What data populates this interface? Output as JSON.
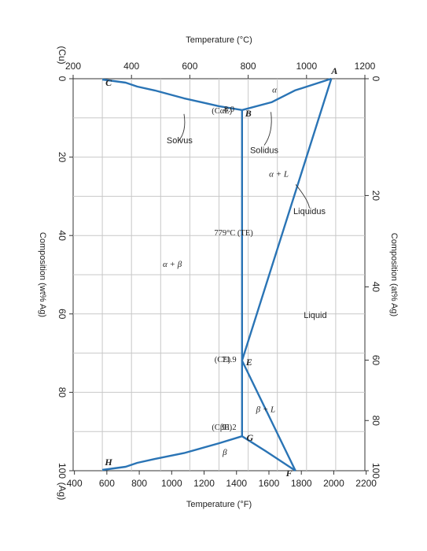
{
  "chart_data": {
    "type": "line",
    "title": "",
    "orientation": "rotated 90 degrees clockwise",
    "x_bottom": {
      "label": "Composition (wt% Ag)",
      "range": [
        0,
        100
      ],
      "ticks": [
        "0",
        "20",
        "40",
        "60",
        "80",
        "100"
      ],
      "end_labels": [
        "(Cu)",
        "(Ag)"
      ]
    },
    "x_top": {
      "label": "Composition (at% Ag)",
      "ticks": [
        "0",
        "20",
        "40",
        "60",
        "80",
        "100"
      ],
      "tick_wt": [
        0,
        29.8,
        53.1,
        71.8,
        87.2,
        100
      ]
    },
    "y_left": {
      "label": "Temperature (°C)",
      "range": [
        200,
        1200
      ],
      "ticks": [
        "200",
        "400",
        "600",
        "800",
        "1000",
        "1200"
      ]
    },
    "y_right": {
      "label": "Temperature (°F)",
      "ticks": [
        "400",
        "600",
        "800",
        "1000",
        "1200",
        "1400",
        "1600",
        "1800",
        "2000",
        "2200"
      ]
    },
    "grid": true,
    "lines": [
      {
        "name": "Liquidus",
        "points": [
          [
            0,
            1085
          ],
          [
            71.9,
            779
          ],
          [
            100,
            962
          ]
        ]
      },
      {
        "name": "Solidus",
        "points": [
          [
            0,
            1085
          ],
          [
            3,
            960
          ],
          [
            6,
            880
          ],
          [
            8.0,
            779
          ]
        ]
      },
      {
        "name": "Solidus",
        "points": [
          [
            100,
            962
          ],
          [
            95,
            860
          ],
          [
            91.2,
            779
          ]
        ]
      },
      {
        "name": "Solvus",
        "points": [
          [
            8.0,
            779
          ],
          [
            7,
            700
          ],
          [
            5,
            580
          ],
          [
            3,
            480
          ],
          [
            2,
            420
          ],
          [
            1,
            380
          ],
          [
            0.2,
            300
          ]
        ]
      },
      {
        "name": "Solvus",
        "points": [
          [
            91.2,
            779
          ],
          [
            93,
            700
          ],
          [
            95.5,
            580
          ],
          [
            97,
            480
          ],
          [
            98,
            420
          ],
          [
            99,
            380
          ],
          [
            99.8,
            300
          ]
        ]
      },
      {
        "name": "Eutectic isotherm",
        "points": [
          [
            8.0,
            779
          ],
          [
            91.2,
            779
          ]
        ]
      }
    ],
    "points": [
      {
        "label": "A",
        "x": 0,
        "y": 1085
      },
      {
        "label": "B",
        "x": 8.0,
        "y": 779
      },
      {
        "label": "C",
        "x": 0.2,
        "y": 300
      },
      {
        "label": "E",
        "x": 71.9,
        "y": 779
      },
      {
        "label": "F",
        "x": 100,
        "y": 962
      },
      {
        "label": "G",
        "x": 91.2,
        "y": 779
      },
      {
        "label": "H",
        "x": 99.8,
        "y": 300
      }
    ],
    "regions": [
      "α",
      "α + L",
      "α + β",
      "Liquid",
      "β + L",
      "β"
    ],
    "line_labels": [
      "Solidus",
      "Liquidus",
      "Solvus"
    ],
    "annotations": [
      "779°C (TE)",
      "8.0",
      "(CαE)",
      "71.9",
      "(CE)",
      "91.2",
      "(CβE)"
    ]
  },
  "colors": {
    "curve": "#2a74b5",
    "grid": "#c8c8c8",
    "text": "#222222"
  }
}
